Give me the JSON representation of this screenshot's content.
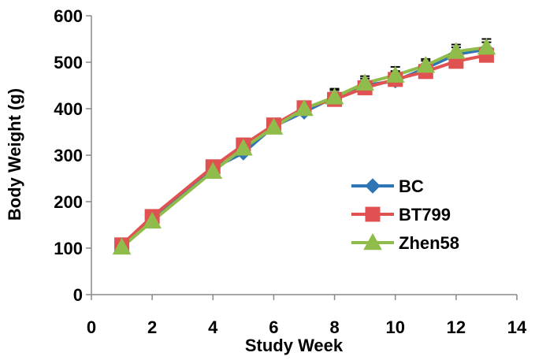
{
  "chart_data": {
    "type": "line",
    "xlabel": "Study  Week",
    "ylabel": "Body Weight (g)",
    "xlim": [
      0,
      14
    ],
    "ylim": [
      0,
      600
    ],
    "x_ticks": [
      0,
      2,
      4,
      6,
      8,
      10,
      12,
      14
    ],
    "y_ticks": [
      0,
      100,
      200,
      300,
      400,
      500,
      600
    ],
    "grid": false,
    "legend_position": "right-middle",
    "x": [
      1,
      2,
      4,
      5,
      6,
      7,
      8,
      9,
      10,
      11,
      12,
      13
    ],
    "series": [
      {
        "name": "BC",
        "color": "#2e75b6",
        "marker": "diamond",
        "values": [
          103,
          162,
          272,
          305,
          362,
          393,
          425,
          450,
          460,
          487,
          517,
          528
        ],
        "errors": [
          4,
          5,
          8,
          10,
          10,
          12,
          15,
          15,
          18,
          16,
          15,
          15
        ]
      },
      {
        "name": "BT799",
        "color": "#e05252",
        "marker": "square",
        "values": [
          107,
          168,
          275,
          322,
          365,
          402,
          420,
          445,
          463,
          480,
          502,
          515
        ],
        "errors": [
          4,
          5,
          8,
          10,
          10,
          12,
          15,
          15,
          18,
          16,
          15,
          15
        ]
      },
      {
        "name": "Zhen58",
        "color": "#8fbc4a",
        "marker": "triangle",
        "values": [
          102,
          158,
          265,
          315,
          360,
          400,
          425,
          455,
          472,
          493,
          523,
          532
        ],
        "errors": [
          4,
          5,
          8,
          10,
          12,
          15,
          18,
          15,
          18,
          14,
          15,
          18
        ]
      }
    ]
  }
}
